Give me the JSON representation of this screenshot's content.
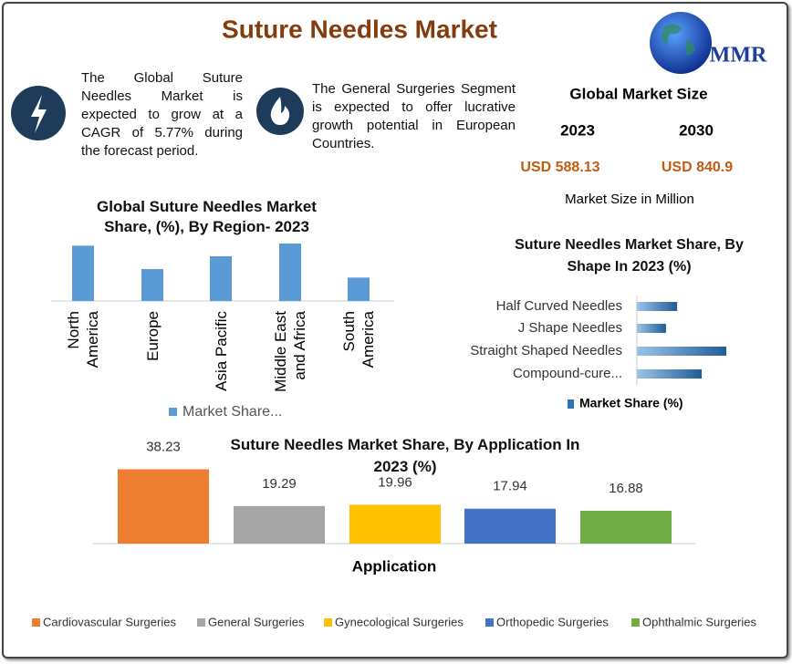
{
  "title": "Suture Needles Market",
  "logo": "MMR",
  "highlights": [
    "The Global Suture Needles Market is expected to grow at a CAGR of 5.77% during the forecast period.",
    "The General Surgeries Segment is expected to offer lucrative growth potential in European Countries."
  ],
  "market_size": {
    "title": "Global Market Size",
    "years": [
      "2023",
      "2030"
    ],
    "values": [
      "USD 588.13",
      "USD 840.9"
    ],
    "note": "Market Size in Million"
  },
  "chart_data": [
    {
      "type": "bar",
      "title": "Global Suture Needles Market Share, (%), By Region- 2023",
      "categories": [
        "North America",
        "Europe",
        "Asia Pacific",
        "Middle East and Africa",
        "South America"
      ],
      "series": [
        {
          "name": "Market Share...",
          "color": "#5b9bd5",
          "values": [
            26,
            15,
            21,
            27,
            11
          ]
        }
      ],
      "ylim": [
        0,
        30
      ]
    },
    {
      "type": "hbar",
      "title": "Suture Needles Market  Share, By Shape In 2023 (%)",
      "categories": [
        "Half Curved Needles",
        "J Shape Needles",
        "Straight Shaped Needles",
        "Compound-cure..."
      ],
      "series": [
        {
          "name": "Market Share (%)",
          "color": "#2e75b6",
          "values": [
            18,
            13,
            40,
            29
          ]
        }
      ],
      "xlim": [
        0,
        40
      ]
    },
    {
      "type": "colorbar",
      "title": "Suture Needles Market  Share, By Application In 2023 (%)",
      "xlabel": "Application",
      "categories": [
        "Cardiovascular Surgeries",
        "General Surgeries",
        "Gynecological Surgeries",
        "Orthopedic Surgeries",
        "Ophthalmic Surgeries"
      ],
      "colors": [
        "#ed7d31",
        "#a5a5a5",
        "#ffc000",
        "#4472c4",
        "#70ad47"
      ],
      "values": [
        38.23,
        19.29,
        19.96,
        17.94,
        16.88
      ],
      "ylim": [
        0,
        45
      ]
    }
  ]
}
